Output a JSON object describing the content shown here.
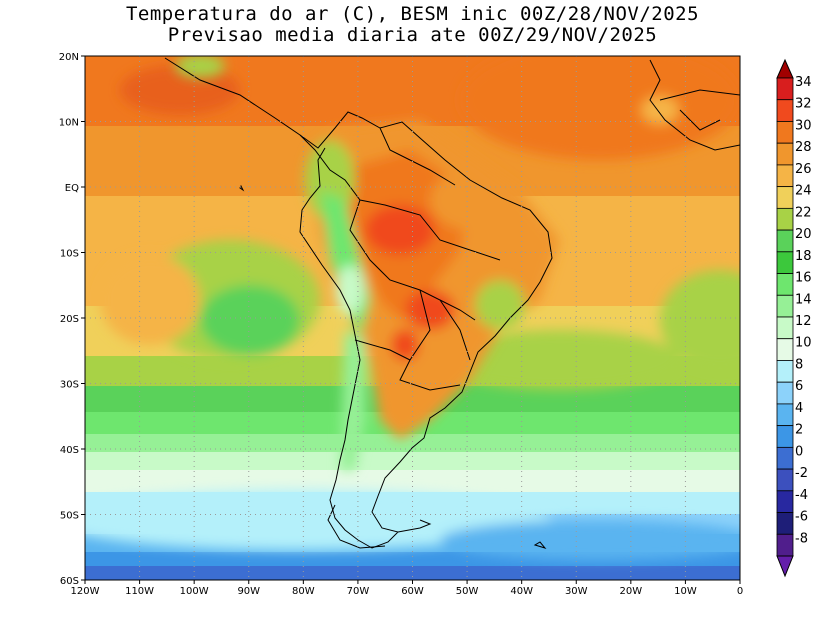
{
  "title": {
    "line1": "Temperatura do ar (C), BESM inic 00Z/28/NOV/2025",
    "line2": "Previsao media diaria ate 00Z/29/NOV/2025"
  },
  "map": {
    "lon_range": [
      -120,
      0
    ],
    "lat_range": [
      -60,
      20
    ],
    "lon_ticks": [
      "120W",
      "110W",
      "100W",
      "90W",
      "80W",
      "70W",
      "60W",
      "50W",
      "40W",
      "30W",
      "20W",
      "10W",
      "0"
    ],
    "lat_ticks": [
      "20N",
      "10N",
      "EQ",
      "10S",
      "20S",
      "30S",
      "40S",
      "50S",
      "60S"
    ],
    "gridlines": "dotted"
  },
  "colorbar": {
    "levels": [
      "34",
      "32",
      "30",
      "28",
      "26",
      "24",
      "22",
      "20",
      "18",
      "16",
      "14",
      "12",
      "10",
      "8",
      "6",
      "4",
      "2",
      "0",
      "-2",
      "-4",
      "-6",
      "-8"
    ],
    "colors": [
      "#a00000",
      "#d81e1e",
      "#f04a1e",
      "#f0781e",
      "#f0962d",
      "#f5b446",
      "#f0d05a",
      "#a8d246",
      "#5ad25a",
      "#3cc83c",
      "#6ee66e",
      "#96f096",
      "#c8fac8",
      "#e6fae6",
      "#b4f0fa",
      "#8cd2fa",
      "#5ab4f0",
      "#3c96e6",
      "#3c6ed2",
      "#3c50be",
      "#2828a0",
      "#1e1e78",
      "#501e8c",
      "#641eaa"
    ]
  }
}
